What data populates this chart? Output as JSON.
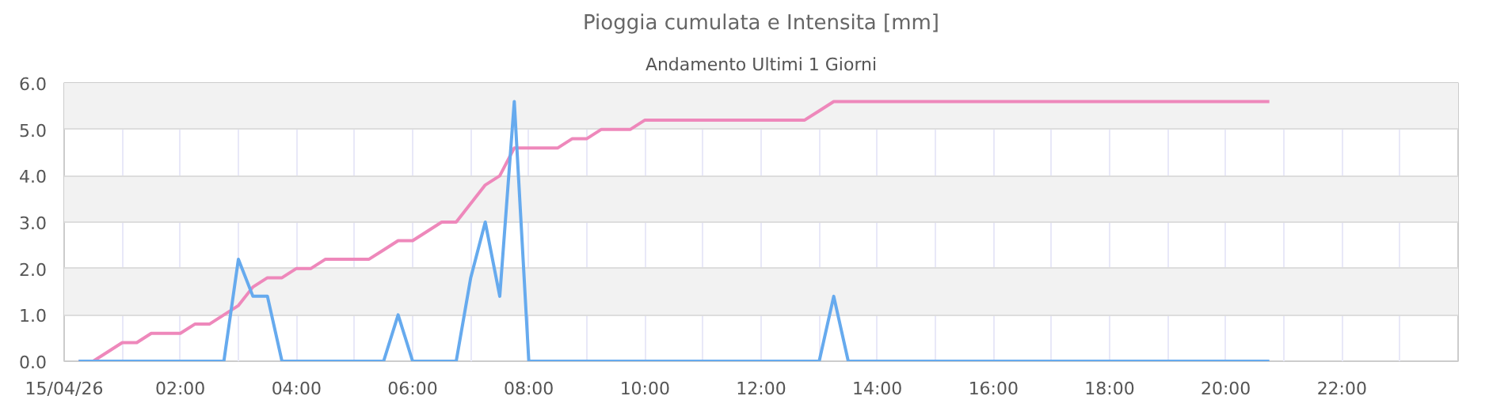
{
  "chart_data": {
    "type": "line",
    "title": "Pioggia cumulata e Intensita [mm]",
    "subtitle": "Andamento Ultimi 1 Giorni",
    "x": [
      0.25,
      0.5,
      0.75,
      1,
      1.25,
      1.5,
      1.75,
      2,
      2.25,
      2.5,
      2.75,
      3,
      3.25,
      3.5,
      3.75,
      4,
      4.25,
      4.5,
      4.75,
      5,
      5.25,
      5.5,
      5.75,
      6,
      6.25,
      6.5,
      6.75,
      7,
      7.25,
      7.5,
      7.75,
      8,
      8.25,
      8.5,
      8.75,
      9,
      9.25,
      9.5,
      9.75,
      10,
      10.25,
      10.5,
      10.75,
      11,
      11.25,
      11.5,
      11.75,
      12,
      12.25,
      12.5,
      12.75,
      13,
      13.25,
      13.5,
      13.75,
      14,
      14.25,
      14.5,
      14.75,
      15,
      15.25,
      15.5,
      15.75,
      16,
      16.25,
      16.5,
      16.75,
      17,
      17.25,
      17.5,
      17.75,
      18,
      18.25,
      18.5,
      18.75,
      19,
      19.25,
      19.5,
      19.75,
      20,
      20.25,
      20.5,
      20.75
    ],
    "series": [
      {
        "color": "#ee88bb",
        "values": [
          0,
          0,
          0.2,
          0.4,
          0.4,
          0.6,
          0.6,
          0.6,
          0.8,
          0.8,
          1.0,
          1.2,
          1.6,
          1.8,
          1.8,
          2.0,
          2.0,
          2.2,
          2.2,
          2.2,
          2.2,
          2.4,
          2.6,
          2.6,
          2.8,
          3.0,
          3.0,
          3.4,
          3.8,
          4.0,
          4.6,
          4.6,
          4.6,
          4.6,
          4.8,
          4.8,
          5.0,
          5.0,
          5.0,
          5.2,
          5.2,
          5.2,
          5.2,
          5.2,
          5.2,
          5.2,
          5.2,
          5.2,
          5.2,
          5.2,
          5.2,
          5.4,
          5.6,
          5.6,
          5.6,
          5.6,
          5.6,
          5.6,
          5.6,
          5.6,
          5.6,
          5.6,
          5.6,
          5.6,
          5.6,
          5.6,
          5.6,
          5.6,
          5.6,
          5.6,
          5.6,
          5.6,
          5.6,
          5.6,
          5.6,
          5.6,
          5.6,
          5.6,
          5.6,
          5.6,
          5.6,
          5.6,
          5.6
        ]
      },
      {
        "color": "#66aaee",
        "values": [
          0,
          0,
          0,
          0,
          0,
          0,
          0,
          0,
          0,
          0,
          0,
          2.2,
          1.4,
          1.4,
          0,
          0,
          0,
          0,
          0,
          0,
          0,
          0,
          1.0,
          0,
          0,
          0,
          0,
          1.8,
          3.0,
          1.4,
          5.6,
          0,
          0,
          0,
          0,
          0,
          0,
          0,
          0,
          0,
          0,
          0,
          0,
          0,
          0,
          0,
          0,
          0,
          0,
          0,
          0,
          0,
          1.4,
          0,
          0,
          0,
          0,
          0,
          0,
          0,
          0,
          0,
          0,
          0,
          0,
          0,
          0,
          0,
          0,
          0,
          0,
          0,
          0,
          0,
          0,
          0,
          0,
          0,
          0,
          0,
          0,
          0,
          0
        ]
      }
    ],
    "xlim": [
      0,
      24
    ],
    "xticks": [
      {
        "value": 0,
        "label": "15/04/26"
      },
      {
        "value": 2,
        "label": "02:00"
      },
      {
        "value": 4,
        "label": "04:00"
      },
      {
        "value": 6,
        "label": "06:00"
      },
      {
        "value": 8,
        "label": "08:00"
      },
      {
        "value": 10,
        "label": "10:00"
      },
      {
        "value": 12,
        "label": "12:00"
      },
      {
        "value": 14,
        "label": "14:00"
      },
      {
        "value": 16,
        "label": "16:00"
      },
      {
        "value": 18,
        "label": "18:00"
      },
      {
        "value": 20,
        "label": "20:00"
      },
      {
        "value": 22,
        "label": "22:00"
      }
    ],
    "ylim": [
      0,
      6
    ],
    "yticks": [
      {
        "value": 0,
        "label": "0.0"
      },
      {
        "value": 1,
        "label": "1.0"
      },
      {
        "value": 2,
        "label": "2.0"
      },
      {
        "value": 3,
        "label": "3.0"
      },
      {
        "value": 4,
        "label": "4.0"
      },
      {
        "value": 5,
        "label": "5.0"
      },
      {
        "value": 6,
        "label": "6.0"
      }
    ],
    "grid": true,
    "marker": "none",
    "line_style": "solid"
  }
}
